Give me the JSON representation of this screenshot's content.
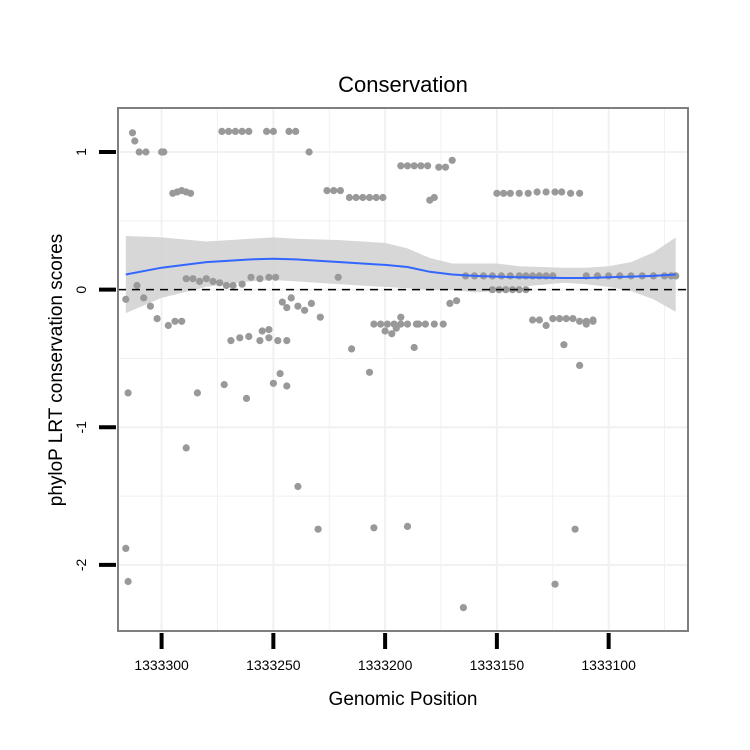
{
  "chart_data": {
    "type": "scatter",
    "title": "Conservation",
    "xlabel": "Genomic Position",
    "ylabel": "phyloP LRT conservation scores",
    "xlim": [
      1333319.5,
      1333064.5
    ],
    "x_reversed": true,
    "ylim": [
      -2.48,
      1.32
    ],
    "xticks": [
      1333300,
      1333250,
      1333200,
      1333150,
      1333100
    ],
    "xtick_labels": [
      "1333300",
      "1333250",
      "1333200",
      "1333150",
      "1333100"
    ],
    "yticks": [
      -2,
      -1,
      0,
      1
    ],
    "ytick_labels": [
      "-2",
      "-1",
      "0",
      "1"
    ],
    "grid": true,
    "reference_line": {
      "y": 0,
      "style": "dashed"
    },
    "colors": {
      "points": "#999999",
      "smooth": "#3366ff",
      "band": "#d3d3d3",
      "grid": "#f1f1f1",
      "frame": "#7f7f7f",
      "refline": "#000000"
    },
    "series": [
      {
        "name": "scores",
        "type": "scatter",
        "points": [
          [
            1333313,
            1.14
          ],
          [
            1333312,
            1.08
          ],
          [
            1333310,
            1.0
          ],
          [
            1333307,
            1.0
          ],
          [
            1333300,
            1.0
          ],
          [
            1333299,
            1.0
          ],
          [
            1333295,
            0.7
          ],
          [
            1333293,
            0.71
          ],
          [
            1333291,
            0.72
          ],
          [
            1333289,
            0.71
          ],
          [
            1333287,
            0.7
          ],
          [
            1333273,
            1.15
          ],
          [
            1333270,
            1.15
          ],
          [
            1333267,
            1.15
          ],
          [
            1333264,
            1.15
          ],
          [
            1333261,
            1.15
          ],
          [
            1333253,
            1.15
          ],
          [
            1333250,
            1.15
          ],
          [
            1333243,
            1.15
          ],
          [
            1333240,
            1.15
          ],
          [
            1333234,
            1.0
          ],
          [
            1333226,
            0.72
          ],
          [
            1333223,
            0.72
          ],
          [
            1333220,
            0.72
          ],
          [
            1333216,
            0.67
          ],
          [
            1333213,
            0.67
          ],
          [
            1333210,
            0.67
          ],
          [
            1333207,
            0.67
          ],
          [
            1333204,
            0.67
          ],
          [
            1333201,
            0.67
          ],
          [
            1333193,
            0.9
          ],
          [
            1333190,
            0.9
          ],
          [
            1333187,
            0.9
          ],
          [
            1333184,
            0.9
          ],
          [
            1333181,
            0.9
          ],
          [
            1333176,
            0.89
          ],
          [
            1333173,
            0.89
          ],
          [
            1333170,
            0.94
          ],
          [
            1333180,
            0.65
          ],
          [
            1333178,
            0.67
          ],
          [
            1333150,
            0.7
          ],
          [
            1333147,
            0.7
          ],
          [
            1333144,
            0.7
          ],
          [
            1333140,
            0.7
          ],
          [
            1333136,
            0.7
          ],
          [
            1333132,
            0.71
          ],
          [
            1333128,
            0.71
          ],
          [
            1333124,
            0.71
          ],
          [
            1333121,
            0.71
          ],
          [
            1333117,
            0.7
          ],
          [
            1333113,
            0.7
          ],
          [
            1333316,
            -0.07
          ],
          [
            1333311,
            0.03
          ],
          [
            1333308,
            -0.06
          ],
          [
            1333305,
            -0.12
          ],
          [
            1333302,
            -0.21
          ],
          [
            1333297,
            -0.26
          ],
          [
            1333294,
            -0.23
          ],
          [
            1333291,
            -0.23
          ],
          [
            1333289,
            0.08
          ],
          [
            1333286,
            0.08
          ],
          [
            1333283,
            0.06
          ],
          [
            1333280,
            0.08
          ],
          [
            1333277,
            0.06
          ],
          [
            1333274,
            0.05
          ],
          [
            1333271,
            0.03
          ],
          [
            1333268,
            0.03
          ],
          [
            1333264,
            0.04
          ],
          [
            1333260,
            0.09
          ],
          [
            1333256,
            0.08
          ],
          [
            1333252,
            0.09
          ],
          [
            1333249,
            0.09
          ],
          [
            1333246,
            -0.09
          ],
          [
            1333244,
            -0.13
          ],
          [
            1333242,
            -0.06
          ],
          [
            1333239,
            -0.12
          ],
          [
            1333236,
            -0.15
          ],
          [
            1333233,
            -0.1
          ],
          [
            1333229,
            -0.2
          ],
          [
            1333221,
            0.09
          ],
          [
            1333205,
            -0.25
          ],
          [
            1333202,
            -0.25
          ],
          [
            1333199,
            -0.25
          ],
          [
            1333196,
            -0.25
          ],
          [
            1333193,
            -0.25
          ],
          [
            1333190,
            -0.25
          ],
          [
            1333186,
            -0.25
          ],
          [
            1333182,
            -0.25
          ],
          [
            1333178,
            -0.25
          ],
          [
            1333174,
            -0.25
          ],
          [
            1333171,
            -0.1
          ],
          [
            1333168,
            -0.08
          ],
          [
            1333164,
            0.1
          ],
          [
            1333160,
            0.1
          ],
          [
            1333156,
            0.1
          ],
          [
            1333152,
            0.1
          ],
          [
            1333148,
            0.1
          ],
          [
            1333144,
            0.1
          ],
          [
            1333140,
            0.1
          ],
          [
            1333137,
            0.1
          ],
          [
            1333134,
            0.1
          ],
          [
            1333131,
            0.1
          ],
          [
            1333128,
            0.1
          ],
          [
            1333125,
            0.1
          ],
          [
            1333152,
            0.0
          ],
          [
            1333149,
            0.0
          ],
          [
            1333146,
            0.0
          ],
          [
            1333143,
            0.0
          ],
          [
            1333140,
            0.0
          ],
          [
            1333137,
            0.0
          ],
          [
            1333134,
            -0.22
          ],
          [
            1333131,
            -0.22
          ],
          [
            1333128,
            -0.26
          ],
          [
            1333125,
            -0.21
          ],
          [
            1333122,
            -0.21
          ],
          [
            1333119,
            -0.21
          ],
          [
            1333116,
            -0.21
          ],
          [
            1333113,
            -0.23
          ],
          [
            1333110,
            -0.23
          ],
          [
            1333107,
            -0.23
          ],
          [
            1333113,
            -0.55
          ],
          [
            1333110,
            -0.25
          ],
          [
            1333107,
            -0.22
          ],
          [
            1333120,
            -0.4
          ],
          [
            1333110,
            0.1
          ],
          [
            1333105,
            0.1
          ],
          [
            1333100,
            0.1
          ],
          [
            1333095,
            0.1
          ],
          [
            1333090,
            0.1
          ],
          [
            1333085,
            0.1
          ],
          [
            1333080,
            0.1
          ],
          [
            1333075,
            0.1
          ],
          [
            1333072,
            0.1
          ],
          [
            1333070,
            0.1
          ],
          [
            1333269,
            -0.37
          ],
          [
            1333265,
            -0.35
          ],
          [
            1333261,
            -0.34
          ],
          [
            1333256,
            -0.37
          ],
          [
            1333252,
            -0.35
          ],
          [
            1333248,
            -0.37
          ],
          [
            1333244,
            -0.37
          ],
          [
            1333255,
            -0.3
          ],
          [
            1333252,
            -0.29
          ],
          [
            1333215,
            -0.43
          ],
          [
            1333207,
            -0.6
          ],
          [
            1333200,
            -0.3
          ],
          [
            1333197,
            -0.32
          ],
          [
            1333195,
            -0.28
          ],
          [
            1333193,
            -0.2
          ],
          [
            1333187,
            -0.42
          ],
          [
            1333185,
            -0.25
          ],
          [
            1333315,
            -0.75
          ],
          [
            1333284,
            -0.75
          ],
          [
            1333272,
            -0.69
          ],
          [
            1333262,
            -0.79
          ],
          [
            1333250,
            -0.68
          ],
          [
            1333247,
            -0.61
          ],
          [
            1333244,
            -0.7
          ],
          [
            1333289,
            -1.15
          ],
          [
            1333239,
            -1.43
          ],
          [
            1333230,
            -1.74
          ],
          [
            1333205,
            -1.73
          ],
          [
            1333190,
            -1.72
          ],
          [
            1333165,
            -2.31
          ],
          [
            1333316,
            -1.88
          ],
          [
            1333315,
            -2.12
          ],
          [
            1333124,
            -2.14
          ],
          [
            1333115,
            -1.74
          ]
        ]
      },
      {
        "name": "loess",
        "type": "smooth",
        "x": [
          1333316,
          1333300,
          1333280,
          1333260,
          1333250,
          1333240,
          1333220,
          1333200,
          1333190,
          1333180,
          1333170,
          1333160,
          1333150,
          1333140,
          1333120,
          1333110,
          1333100,
          1333090,
          1333080,
          1333070
        ],
        "y": [
          0.11,
          0.16,
          0.2,
          0.22,
          0.225,
          0.22,
          0.2,
          0.18,
          0.165,
          0.13,
          0.11,
          0.1,
          0.095,
          0.09,
          0.085,
          0.085,
          0.09,
          0.095,
          0.1,
          0.11
        ],
        "ymin": [
          -0.17,
          -0.06,
          0.02,
          0.06,
          0.07,
          0.06,
          0.04,
          0.02,
          0.01,
          0.0,
          0.0,
          -0.02,
          -0.01,
          0.02,
          0.05,
          0.04,
          0.02,
          -0.01,
          -0.07,
          -0.16
        ],
        "ymax": [
          0.39,
          0.38,
          0.35,
          0.37,
          0.38,
          0.37,
          0.36,
          0.34,
          0.3,
          0.23,
          0.19,
          0.19,
          0.19,
          0.17,
          0.16,
          0.16,
          0.17,
          0.2,
          0.27,
          0.38
        ]
      }
    ]
  }
}
